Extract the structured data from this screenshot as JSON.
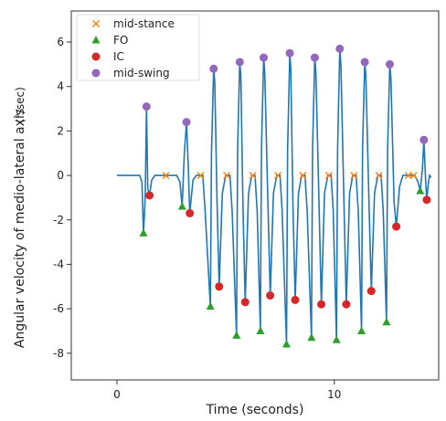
{
  "chart_data": {
    "type": "line+scatter",
    "xlabel": "Time (seconds)",
    "ylabel": "Angular velocity of medio-lateral axis",
    "ylabel_unit": "(°/sec)",
    "xlim": [
      -2.1,
      14.8
    ],
    "ylim": [
      -9.2,
      7.4
    ],
    "xticks": [
      0,
      10
    ],
    "yticks": [
      -8,
      -6,
      -4,
      -2,
      0,
      2,
      4,
      6
    ],
    "grid": false,
    "legend_position": "top-left",
    "line_color": "#1f77b4",
    "signal": [
      [
        0,
        0
      ],
      [
        1.05,
        0
      ],
      [
        1.15,
        -0.3
      ],
      [
        1.22,
        -2.6
      ],
      [
        1.3,
        -1.0
      ],
      [
        1.36,
        3.1
      ],
      [
        1.42,
        -0.6
      ],
      [
        1.5,
        -0.9
      ],
      [
        1.6,
        -0.2
      ],
      [
        1.75,
        0
      ],
      [
        2.5,
        0
      ],
      [
        2.75,
        0
      ],
      [
        2.9,
        -0.3
      ],
      [
        3.0,
        -1.4
      ],
      [
        3.1,
        1.0
      ],
      [
        3.2,
        2.4
      ],
      [
        3.28,
        0.4
      ],
      [
        3.35,
        -1.7
      ],
      [
        3.5,
        -0.2
      ],
      [
        3.65,
        0
      ],
      [
        3.95,
        0
      ],
      [
        4.05,
        -1.5
      ],
      [
        4.3,
        -5.9
      ],
      [
        4.35,
        1.0
      ],
      [
        4.45,
        4.8
      ],
      [
        4.5,
        4.2
      ],
      [
        4.6,
        -1.0
      ],
      [
        4.7,
        -5.0
      ],
      [
        4.85,
        -0.8
      ],
      [
        5.0,
        0
      ],
      [
        5.2,
        0
      ],
      [
        5.3,
        -1.6
      ],
      [
        5.5,
        -7.2
      ],
      [
        5.55,
        1.2
      ],
      [
        5.65,
        5.1
      ],
      [
        5.7,
        4.5
      ],
      [
        5.8,
        -1.5
      ],
      [
        5.9,
        -5.7
      ],
      [
        6.05,
        -0.8
      ],
      [
        6.2,
        0
      ],
      [
        6.35,
        0
      ],
      [
        6.45,
        -1.6
      ],
      [
        6.6,
        -7.0
      ],
      [
        6.65,
        1.2
      ],
      [
        6.75,
        5.3
      ],
      [
        6.8,
        4.6
      ],
      [
        6.95,
        -1.5
      ],
      [
        7.05,
        -5.4
      ],
      [
        7.2,
        -0.8
      ],
      [
        7.35,
        0
      ],
      [
        7.5,
        0
      ],
      [
        7.6,
        -1.6
      ],
      [
        7.8,
        -7.6
      ],
      [
        7.85,
        1.2
      ],
      [
        7.95,
        5.5
      ],
      [
        8.0,
        4.8
      ],
      [
        8.1,
        -1.5
      ],
      [
        8.2,
        -5.6
      ],
      [
        8.35,
        -0.8
      ],
      [
        8.5,
        0
      ],
      [
        8.65,
        0
      ],
      [
        8.75,
        -1.6
      ],
      [
        8.95,
        -7.3
      ],
      [
        9.0,
        1.2
      ],
      [
        9.1,
        5.3
      ],
      [
        9.15,
        4.7
      ],
      [
        9.3,
        -1.5
      ],
      [
        9.4,
        -5.8
      ],
      [
        9.55,
        -0.8
      ],
      [
        9.7,
        0
      ],
      [
        9.85,
        0
      ],
      [
        9.95,
        -1.6
      ],
      [
        10.1,
        -7.4
      ],
      [
        10.15,
        1.2
      ],
      [
        10.25,
        5.7
      ],
      [
        10.3,
        5.0
      ],
      [
        10.45,
        -1.5
      ],
      [
        10.55,
        -5.8
      ],
      [
        10.7,
        -0.8
      ],
      [
        10.85,
        0
      ],
      [
        11.0,
        0
      ],
      [
        11.1,
        -1.6
      ],
      [
        11.25,
        -7.0
      ],
      [
        11.3,
        1.2
      ],
      [
        11.4,
        5.1
      ],
      [
        11.45,
        4.5
      ],
      [
        11.6,
        -1.5
      ],
      [
        11.7,
        -5.2
      ],
      [
        11.85,
        -0.8
      ],
      [
        12.0,
        0
      ],
      [
        12.15,
        0
      ],
      [
        12.25,
        -1.6
      ],
      [
        12.4,
        -6.6
      ],
      [
        12.45,
        1.2
      ],
      [
        12.55,
        5.0
      ],
      [
        12.6,
        4.4
      ],
      [
        12.75,
        -1.2
      ],
      [
        12.85,
        -2.3
      ],
      [
        13.0,
        -0.5
      ],
      [
        13.15,
        0
      ],
      [
        13.7,
        0
      ],
      [
        13.85,
        -0.3
      ],
      [
        13.95,
        -0.7
      ],
      [
        14.05,
        0.3
      ],
      [
        14.12,
        1.6
      ],
      [
        14.2,
        -0.2
      ],
      [
        14.25,
        -1.1
      ],
      [
        14.32,
        -0.4
      ],
      [
        14.38,
        0
      ],
      [
        14.45,
        -0.1
      ]
    ],
    "series": [
      {
        "name": "mid-stance",
        "marker": "x",
        "color": "#ff7f0e",
        "x": [
          2.25,
          3.85,
          5.05,
          6.25,
          7.4,
          8.55,
          9.75,
          10.9,
          12.05,
          13.4,
          13.65
        ],
        "y": [
          0,
          0,
          0,
          0,
          0,
          0,
          0,
          0,
          0,
          0,
          0
        ]
      },
      {
        "name": "FO",
        "marker": "triangle",
        "color": "#2ca02c",
        "x": [
          1.22,
          3.0,
          4.3,
          5.5,
          6.6,
          7.8,
          8.95,
          10.1,
          11.25,
          12.4,
          13.95
        ],
        "y": [
          -2.6,
          -1.4,
          -5.9,
          -7.2,
          -7.0,
          -7.6,
          -7.3,
          -7.4,
          -7.0,
          -6.6,
          -0.7
        ]
      },
      {
        "name": "IC",
        "marker": "circle",
        "color": "#d62728",
        "x": [
          1.5,
          3.35,
          4.7,
          5.9,
          7.05,
          8.2,
          9.4,
          10.55,
          11.7,
          12.85,
          14.25
        ],
        "y": [
          -0.9,
          -1.7,
          -5.0,
          -5.7,
          -5.4,
          -5.6,
          -5.8,
          -5.8,
          -5.2,
          -2.3,
          -1.1
        ]
      },
      {
        "name": "mid-swing",
        "marker": "circle",
        "color": "#9467bd",
        "x": [
          1.36,
          3.2,
          4.45,
          5.65,
          6.75,
          7.95,
          9.1,
          10.25,
          11.4,
          12.55,
          14.12
        ],
        "y": [
          3.1,
          2.4,
          4.8,
          5.1,
          5.3,
          5.5,
          5.3,
          5.7,
          5.1,
          5.0,
          1.6
        ]
      }
    ]
  }
}
